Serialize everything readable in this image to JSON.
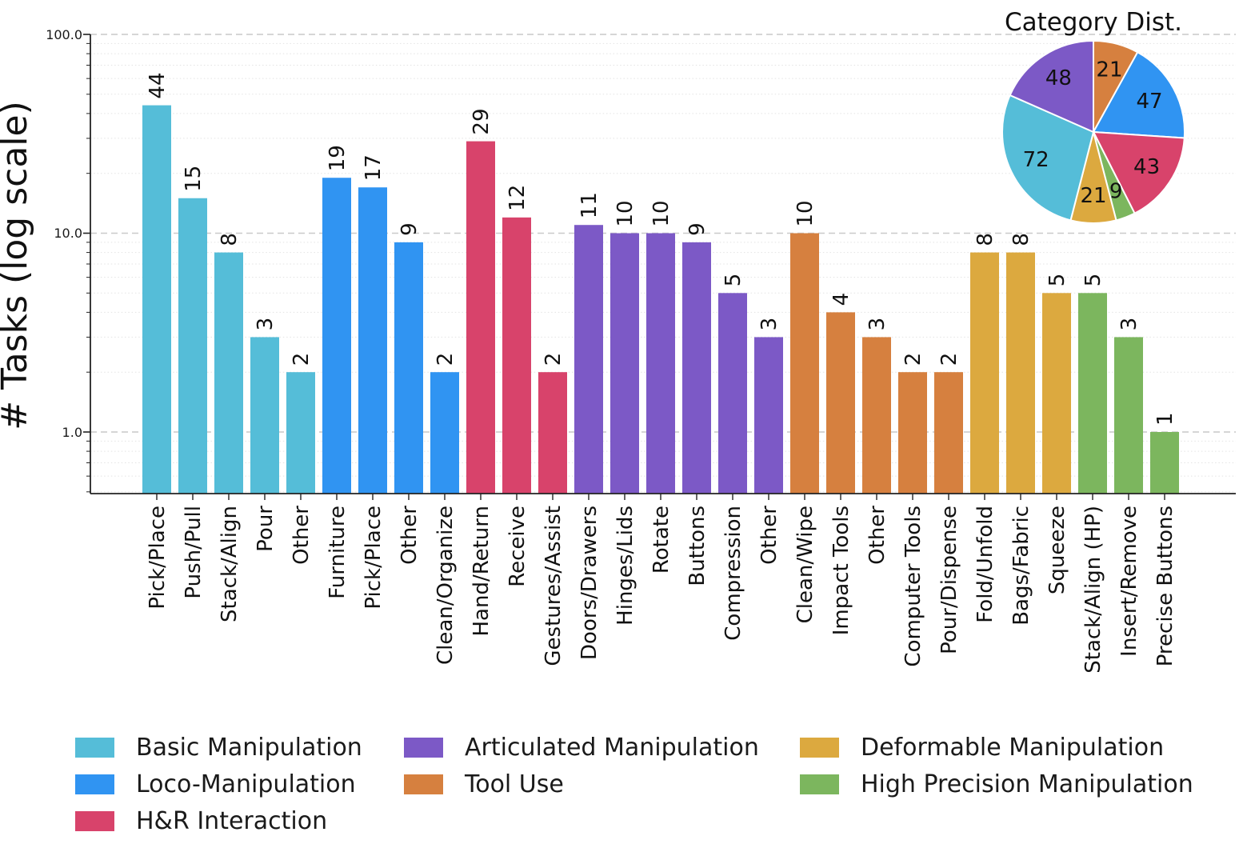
{
  "chart_data": {
    "type": "bar",
    "title": "",
    "ylabel": "# Tasks (log scale)",
    "yscale": "log",
    "ylim": [
      0.48,
      100
    ],
    "ytick_labels": [
      "100.0",
      "10.0",
      "1.0"
    ],
    "ytick_values": [
      100,
      10,
      1
    ],
    "grid": "horizontal: major dashed gray at 1/10/100, minor dotted light gray",
    "categories": [
      {
        "name": "Basic Manipulation",
        "color": "#55BDD8",
        "total": 72
      },
      {
        "name": "Loco-Manipulation",
        "color": "#3094F2",
        "total": 47
      },
      {
        "name": "H&R Interaction",
        "color": "#D8436B",
        "total": 43
      },
      {
        "name": "Articulated Manipulation",
        "color": "#7C59C6",
        "total": 48
      },
      {
        "name": "Tool Use",
        "color": "#D6803F",
        "total": 21
      },
      {
        "name": "Deformable Manipulation",
        "color": "#DCA93F",
        "total": 21
      },
      {
        "name": "High Precision Manipulation",
        "color": "#7CB65E",
        "total": 9
      }
    ],
    "bars": [
      {
        "label": "Pick/Place",
        "value": 44,
        "category": 0
      },
      {
        "label": "Push/Pull",
        "value": 15,
        "category": 0
      },
      {
        "label": "Stack/Align",
        "value": 8,
        "category": 0
      },
      {
        "label": "Pour",
        "value": 3,
        "category": 0
      },
      {
        "label": "Other",
        "value": 2,
        "category": 0
      },
      {
        "label": "Furniture",
        "value": 19,
        "category": 1
      },
      {
        "label": "Pick/Place",
        "value": 17,
        "category": 1
      },
      {
        "label": "Other",
        "value": 9,
        "category": 1
      },
      {
        "label": "Clean/Organize",
        "value": 2,
        "category": 1
      },
      {
        "label": "Hand/Return",
        "value": 29,
        "category": 2
      },
      {
        "label": "Receive",
        "value": 12,
        "category": 2
      },
      {
        "label": "Gestures/Assist",
        "value": 2,
        "category": 2
      },
      {
        "label": "Doors/Drawers",
        "value": 11,
        "category": 3
      },
      {
        "label": "Hinges/Lids",
        "value": 10,
        "category": 3
      },
      {
        "label": "Rotate",
        "value": 10,
        "category": 3
      },
      {
        "label": "Buttons",
        "value": 9,
        "category": 3
      },
      {
        "label": "Compression",
        "value": 5,
        "category": 3
      },
      {
        "label": "Other",
        "value": 3,
        "category": 3
      },
      {
        "label": "Clean/Wipe",
        "value": 10,
        "category": 4
      },
      {
        "label": "Impact Tools",
        "value": 4,
        "category": 4
      },
      {
        "label": "Other",
        "value": 3,
        "category": 4
      },
      {
        "label": "Computer Tools",
        "value": 2,
        "category": 4
      },
      {
        "label": "Pour/Dispense",
        "value": 2,
        "category": 4
      },
      {
        "label": "Fold/Unfold",
        "value": 8,
        "category": 5
      },
      {
        "label": "Bags/Fabric",
        "value": 8,
        "category": 5
      },
      {
        "label": "Squeeze",
        "value": 5,
        "category": 5
      },
      {
        "label": "Stack/Align (HP)",
        "value": 5,
        "category": 6
      },
      {
        "label": "Insert/Remove",
        "value": 3,
        "category": 6
      },
      {
        "label": "Precise Buttons",
        "value": 1,
        "category": 6
      }
    ],
    "pie": {
      "title": "Category Dist.",
      "direction": "clockwise-from-top",
      "slices": [
        {
          "value": 21,
          "category": 4
        },
        {
          "value": 47,
          "category": 1
        },
        {
          "value": 43,
          "category": 2
        },
        {
          "value": 9,
          "category": 6
        },
        {
          "value": 21,
          "category": 5
        },
        {
          "value": 72,
          "category": 0
        },
        {
          "value": 48,
          "category": 3
        }
      ]
    },
    "legend_columns": [
      [
        0,
        1,
        2
      ],
      [
        3,
        4
      ],
      [
        5,
        6
      ]
    ]
  }
}
